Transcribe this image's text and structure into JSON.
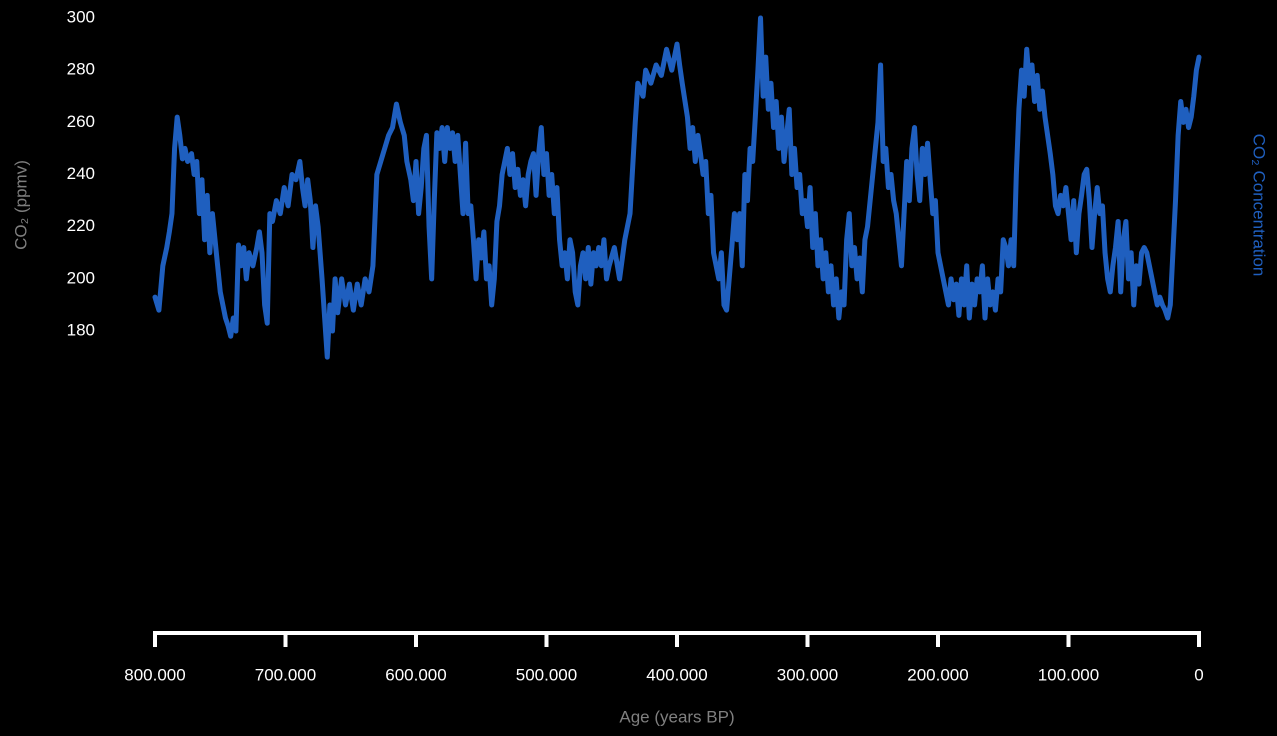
{
  "chart_data": {
    "type": "line",
    "x_label": "Age (years BP)",
    "y_label": "CO₂ (ppmv)",
    "x": [
      800000,
      797000,
      794000,
      791000,
      789000,
      787000,
      785000,
      783000,
      781000,
      779000,
      777000,
      775000,
      772000,
      770000,
      768000,
      766000,
      764000,
      762000,
      760000,
      758000,
      756000,
      754000,
      752000,
      750000,
      748000,
      746000,
      744000,
      742000,
      740000,
      738000,
      736000,
      734000,
      732000,
      730000,
      728000,
      725000,
      722000,
      720000,
      718000,
      716000,
      714000,
      712000,
      710000,
      707000,
      704000,
      701000,
      698000,
      695000,
      692000,
      689000,
      687000,
      685000,
      683000,
      681000,
      679000,
      677000,
      675000,
      672000,
      670000,
      668000,
      666000,
      664000,
      662000,
      660000,
      657000,
      654000,
      651000,
      648000,
      645000,
      642000,
      639000,
      636000,
      633000,
      630000,
      627000,
      624000,
      621000,
      618000,
      615000,
      612000,
      609000,
      607000,
      604000,
      602000,
      600000,
      598000,
      596000,
      594000,
      592000,
      590000,
      588000,
      586000,
      584000,
      582000,
      580000,
      578000,
      576000,
      574000,
      572000,
      570000,
      568000,
      566000,
      564000,
      562000,
      560000,
      558000,
      556000,
      554000,
      552000,
      550000,
      548000,
      546000,
      544000,
      542000,
      540000,
      538000,
      536000,
      534000,
      532000,
      530000,
      528000,
      526000,
      524000,
      522000,
      520000,
      518000,
      516000,
      514000,
      512000,
      510000,
      508000,
      506000,
      504000,
      502000,
      500000,
      498000,
      496000,
      494000,
      492000,
      490000,
      488000,
      486000,
      484000,
      482000,
      480000,
      478000,
      476000,
      474000,
      472000,
      470000,
      468000,
      466000,
      464000,
      462000,
      460000,
      458000,
      456000,
      454000,
      452000,
      448000,
      444000,
      440000,
      436000,
      432000,
      430000,
      426000,
      424000,
      420000,
      416000,
      412000,
      408000,
      404000,
      400000,
      398000,
      396000,
      392000,
      390000,
      388000,
      386000,
      384000,
      382000,
      380000,
      378000,
      376000,
      374000,
      372000,
      370000,
      368000,
      366000,
      364000,
      362000,
      360000,
      358000,
      356000,
      354000,
      352000,
      350000,
      348000,
      346000,
      344000,
      342000,
      340000,
      338000,
      336000,
      334000,
      332000,
      330000,
      328000,
      326000,
      324000,
      322000,
      320000,
      318000,
      316000,
      314000,
      312000,
      310000,
      308000,
      306000,
      304000,
      302000,
      300000,
      298000,
      296000,
      294000,
      292000,
      290000,
      288000,
      286000,
      284000,
      282000,
      280000,
      278000,
      276000,
      274000,
      272000,
      270000,
      268000,
      266000,
      264000,
      262000,
      260000,
      258000,
      256000,
      254000,
      252000,
      250000,
      248000,
      246000,
      244000,
      242000,
      240000,
      238000,
      236000,
      234000,
      232000,
      230000,
      228000,
      226000,
      224000,
      222000,
      220000,
      218000,
      216000,
      214000,
      212000,
      210000,
      208000,
      206000,
      204000,
      202000,
      200000,
      198000,
      196000,
      194000,
      192000,
      190000,
      188000,
      186000,
      184000,
      182000,
      180000,
      178000,
      176000,
      174000,
      172000,
      170000,
      168000,
      166000,
      164000,
      162000,
      160000,
      158000,
      156000,
      154000,
      152000,
      150000,
      148000,
      146000,
      144000,
      142000,
      140000,
      138000,
      136000,
      134000,
      132000,
      130000,
      128000,
      126000,
      124000,
      122000,
      120000,
      118000,
      116000,
      114000,
      112000,
      110000,
      108000,
      106000,
      104000,
      102000,
      100000,
      98000,
      96000,
      94000,
      92000,
      90000,
      88000,
      86000,
      84000,
      82000,
      80000,
      78000,
      76000,
      74000,
      72000,
      70000,
      68000,
      66000,
      64000,
      62000,
      60000,
      58000,
      56000,
      54000,
      52000,
      50000,
      48000,
      46000,
      44000,
      42000,
      40000,
      38000,
      36000,
      34000,
      32000,
      30000,
      28000,
      26000,
      24000,
      22000,
      20000,
      18000,
      16000,
      14000,
      12000,
      10000,
      8000,
      6000,
      4000,
      2000,
      0
    ],
    "series": [
      {
        "name": "CO₂ Concentration",
        "color": "#1f5fbf",
        "values": [
          193,
          188,
          205,
          212,
          218,
          225,
          250,
          262,
          255,
          246,
          250,
          245,
          248,
          240,
          245,
          225,
          238,
          215,
          232,
          210,
          225,
          215,
          205,
          195,
          190,
          185,
          182,
          178,
          185,
          180,
          213,
          205,
          212,
          200,
          210,
          205,
          212,
          218,
          210,
          190,
          183,
          225,
          222,
          230,
          225,
          235,
          228,
          240,
          238,
          245,
          235,
          228,
          238,
          230,
          212,
          228,
          220,
          200,
          185,
          170,
          190,
          180,
          200,
          187,
          200,
          190,
          198,
          188,
          198,
          190,
          200,
          195,
          205,
          240,
          245,
          250,
          255,
          258,
          267,
          260,
          255,
          245,
          238,
          230,
          245,
          225,
          235,
          250,
          255,
          220,
          200,
          230,
          256,
          250,
          258,
          245,
          258,
          250,
          256,
          245,
          255,
          240,
          225,
          252,
          225,
          228,
          215,
          200,
          215,
          208,
          218,
          200,
          205,
          190,
          200,
          222,
          228,
          240,
          245,
          250,
          240,
          248,
          235,
          242,
          232,
          238,
          228,
          240,
          245,
          248,
          232,
          248,
          258,
          240,
          248,
          232,
          240,
          225,
          235,
          215,
          205,
          210,
          200,
          215,
          210,
          195,
          190,
          205,
          210,
          200,
          212,
          198,
          210,
          205,
          212,
          205,
          215,
          200,
          205,
          212,
          200,
          215,
          225,
          260,
          275,
          270,
          280,
          275,
          282,
          278,
          288,
          280,
          290,
          282,
          275,
          262,
          250,
          258,
          245,
          255,
          248,
          240,
          245,
          225,
          232,
          210,
          205,
          200,
          210,
          190,
          188,
          200,
          212,
          225,
          215,
          225,
          205,
          240,
          230,
          250,
          245,
          262,
          280,
          300,
          270,
          285,
          265,
          275,
          258,
          268,
          250,
          262,
          245,
          255,
          265,
          240,
          250,
          235,
          240,
          225,
          230,
          220,
          235,
          212,
          225,
          205,
          215,
          200,
          210,
          195,
          205,
          190,
          200,
          185,
          195,
          190,
          215,
          225,
          205,
          212,
          200,
          208,
          195,
          215,
          220,
          230,
          240,
          250,
          260,
          282,
          245,
          250,
          235,
          240,
          230,
          225,
          215,
          205,
          225,
          245,
          230,
          250,
          258,
          240,
          230,
          250,
          240,
          252,
          238,
          225,
          230,
          210,
          205,
          200,
          195,
          190,
          200,
          192,
          198,
          186,
          200,
          190,
          205,
          185,
          198,
          190,
          200,
          195,
          205,
          185,
          200,
          190,
          195,
          188,
          200,
          195,
          215,
          212,
          205,
          215,
          205,
          240,
          265,
          280,
          270,
          288,
          275,
          282,
          268,
          278,
          265,
          272,
          262,
          255,
          248,
          240,
          228,
          225,
          232,
          228,
          235,
          225,
          215,
          230,
          210,
          225,
          232,
          240,
          242,
          230,
          212,
          225,
          235,
          225,
          228,
          210,
          200,
          195,
          205,
          212,
          222,
          195,
          215,
          222,
          200,
          210,
          190,
          205,
          198,
          210,
          212,
          210,
          205,
          200,
          195,
          190,
          193,
          190,
          188,
          185,
          190,
          210,
          230,
          255,
          268,
          260,
          265,
          258,
          262,
          270,
          280,
          285
        ]
      }
    ],
    "xlim": [
      800000,
      0
    ],
    "xticks": [
      {
        "value": 800000,
        "label": "800.000"
      },
      {
        "value": 700000,
        "label": "700.000"
      },
      {
        "value": 600000,
        "label": "600.000"
      },
      {
        "value": 500000,
        "label": "500.000"
      },
      {
        "value": 400000,
        "label": "400.000"
      },
      {
        "value": 300000,
        "label": "300.000"
      },
      {
        "value": 200000,
        "label": "200.000"
      },
      {
        "value": 100000,
        "label": "100.000"
      },
      0
    ],
    "ylim": [
      160,
      300
    ],
    "yticks": [
      180,
      200,
      220,
      240,
      260,
      280,
      300
    ]
  }
}
